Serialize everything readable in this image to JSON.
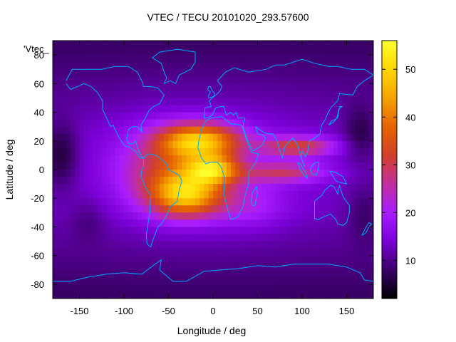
{
  "chart_data": {
    "type": "heatmap",
    "title": "VTEC / TECU 20101020_293.57600",
    "xlabel": "Longitude / deg",
    "ylabel": "Latitude / deg",
    "series_label": "'Vtec_",
    "xlim": [
      -180,
      180
    ],
    "ylim": [
      -90,
      90
    ],
    "xticks": [
      -150,
      -100,
      -50,
      0,
      50,
      100,
      150
    ],
    "yticks": [
      -80,
      -60,
      -40,
      -20,
      0,
      20,
      40,
      60,
      80
    ],
    "colorbar": {
      "range": [
        2,
        56
      ],
      "ticks": [
        10,
        20,
        30,
        40,
        50
      ],
      "palette": [
        "#000000",
        "#3a0066",
        "#7b00d8",
        "#a81cff",
        "#c02f9c",
        "#d2402a",
        "#e56400",
        "#f5a300",
        "#ffd600",
        "#ffff30"
      ]
    },
    "features": [
      {
        "name": "background_mid_lat",
        "value": 12
      },
      {
        "name": "background_polar",
        "value": 8
      },
      {
        "name": "low_spot_west_pacific",
        "lon": -170,
        "lat": 10,
        "value": 3
      },
      {
        "name": "low_spot_east_pacific",
        "lon": 165,
        "lat": 25,
        "value": 4
      },
      {
        "name": "crest_north",
        "lon": -30,
        "lat": 22,
        "value": 55
      },
      {
        "name": "crest_south",
        "lon": -45,
        "lat": -15,
        "value": 52
      },
      {
        "name": "equatorial_peak",
        "lon": 0,
        "lat": 0,
        "value": 54
      },
      {
        "name": "asia_extension",
        "lon": 100,
        "lat": 15,
        "value": 34
      }
    ]
  }
}
